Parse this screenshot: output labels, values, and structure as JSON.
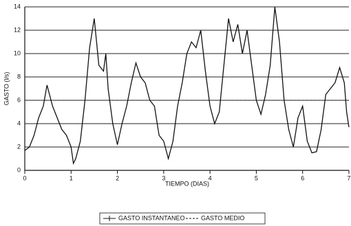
{
  "chart_data": {
    "type": "line",
    "x_label": "TIEMPO (DIAS)",
    "y_label": "GASTO (l/s)",
    "x": [
      0,
      0.1,
      0.2,
      0.3,
      0.4,
      0.48,
      0.6,
      0.7,
      0.8,
      0.9,
      1.0,
      1.05,
      1.1,
      1.2,
      1.3,
      1.4,
      1.5,
      1.6,
      1.7,
      1.75,
      1.8,
      1.9,
      2.0,
      2.1,
      2.2,
      2.3,
      2.4,
      2.5,
      2.6,
      2.7,
      2.8,
      2.9,
      3.0,
      3.1,
      3.2,
      3.3,
      3.4,
      3.5,
      3.6,
      3.7,
      3.8,
      3.9,
      4.0,
      4.1,
      4.2,
      4.3,
      4.4,
      4.5,
      4.6,
      4.7,
      4.8,
      4.9,
      5.0,
      5.1,
      5.2,
      5.3,
      5.4,
      5.5,
      5.6,
      5.7,
      5.8,
      5.9,
      6.0,
      6.1,
      6.2,
      6.3,
      6.4,
      6.5,
      6.6,
      6.7,
      6.8,
      6.9,
      6.95,
      7.0
    ],
    "series": [
      {
        "name": "GASTO INSTANTANEO",
        "color": "#111111",
        "values": [
          1.7,
          2.0,
          3.0,
          4.5,
          5.5,
          7.3,
          5.5,
          4.5,
          3.5,
          3.0,
          2.0,
          0.6,
          1.0,
          2.5,
          6.0,
          10.5,
          13.0,
          9.0,
          8.5,
          10.0,
          7.0,
          4.0,
          2.2,
          4.0,
          5.5,
          7.5,
          9.2,
          8.0,
          7.5,
          6.0,
          5.5,
          3.0,
          2.5,
          1.0,
          2.5,
          5.5,
          7.5,
          10.0,
          11.0,
          10.5,
          12.0,
          8.5,
          5.5,
          4.0,
          5.0,
          9.0,
          13.0,
          11.0,
          12.5,
          10.0,
          12.0,
          9.0,
          6.0,
          4.8,
          6.5,
          9.0,
          14.0,
          11.0,
          6.0,
          3.5,
          2.0,
          4.5,
          5.5,
          2.5,
          1.5,
          1.6,
          3.5,
          6.5,
          7.0,
          7.5,
          8.8,
          7.5,
          5.0,
          3.7
        ]
      },
      {
        "name": "GASTO MEDIO",
        "color": "#111111",
        "dash": true,
        "x": [
          0,
          7
        ],
        "values": [
          6.0,
          6.0
        ]
      }
    ],
    "xlim": [
      0,
      7
    ],
    "xticks": [
      0,
      1,
      2,
      3,
      4,
      5,
      6,
      7
    ],
    "ylim": [
      0,
      14
    ],
    "yticks": [
      0,
      2,
      4,
      6,
      8,
      10,
      12,
      14
    ],
    "grid": true
  }
}
